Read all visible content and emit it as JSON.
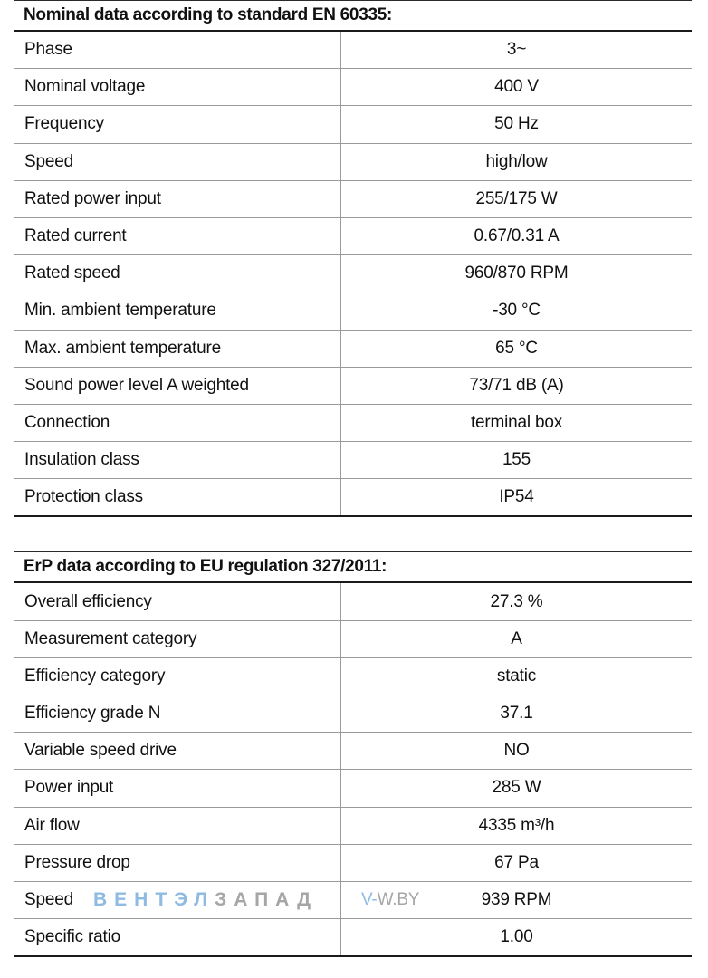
{
  "nominal": {
    "title": "Nominal data according to standard EN 60335:",
    "rows": [
      {
        "label": "Phase",
        "value": "3~"
      },
      {
        "label": "Nominal voltage",
        "value": "400 V"
      },
      {
        "label": "Frequency",
        "value": "50 Hz"
      },
      {
        "label": "Speed",
        "value": "high/low"
      },
      {
        "label": "Rated power input",
        "value": "255/175 W"
      },
      {
        "label": "Rated current",
        "value": "0.67/0.31 A"
      },
      {
        "label": "Rated speed",
        "value": "960/870 RPM"
      },
      {
        "label": "Min. ambient temperature",
        "value": "-30 °C"
      },
      {
        "label": "Max. ambient temperature",
        "value": "65 °C"
      },
      {
        "label": "Sound power level A weighted",
        "value": "73/71 dB (A)"
      },
      {
        "label": "Connection",
        "value": "terminal box"
      },
      {
        "label": "Insulation class",
        "value": "155"
      },
      {
        "label": "Protection class",
        "value": "IP54"
      }
    ]
  },
  "erp": {
    "title": "ErP data according to EU regulation 327/2011:",
    "rows": [
      {
        "label": "Overall efficiency",
        "value": "27.3 %"
      },
      {
        "label": "Measurement category",
        "value": "A"
      },
      {
        "label": "Efficiency category",
        "value": "static"
      },
      {
        "label": "Efficiency grade N",
        "value": "37.1"
      },
      {
        "label": "Variable speed drive",
        "value": "NO"
      },
      {
        "label": "Power input",
        "value": "285 W"
      },
      {
        "label": "Air flow",
        "value": "4335 m³/h"
      },
      {
        "label": "Pressure drop",
        "value": "67 Pa"
      },
      {
        "label": "Speed",
        "value": "939 RPM"
      },
      {
        "label": "Specific ratio",
        "value": "1.00"
      }
    ]
  },
  "watermark": {
    "logo_part1": "ВЕНТЭЛ",
    "logo_part2": "ЗАПАД",
    "site_part1": "V-",
    "site_part2": "W.BY",
    "colors": {
      "blue": "#8fbbe2",
      "gray": "#a6a6a6"
    }
  }
}
